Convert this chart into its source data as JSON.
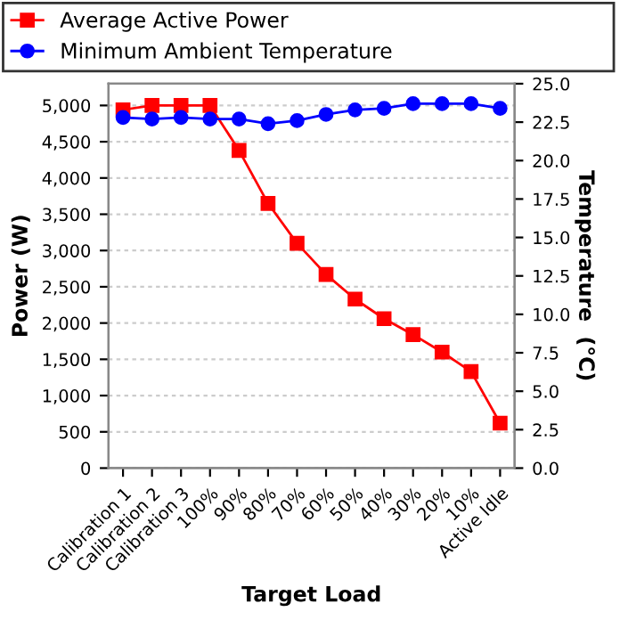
{
  "chart_data": {
    "type": "line",
    "xlabel": "Target Load",
    "ylabel": "Power (W)",
    "y2label": "Temperature  (°C)",
    "categories": [
      "Calibration 1",
      "Calibration 2",
      "Calibration 3",
      "100%",
      "90%",
      "80%",
      "70%",
      "60%",
      "50%",
      "40%",
      "30%",
      "20%",
      "10%",
      "Active Idle"
    ],
    "series": [
      {
        "name": "Average Active Power",
        "color": "#ff0000",
        "marker": "square",
        "values": [
          4940,
          5000,
          5000,
          5000,
          4380,
          3650,
          3100,
          2670,
          2330,
          2060,
          1840,
          1600,
          1330,
          620
        ]
      },
      {
        "name": "Minimum Ambient Temperature",
        "color": "#0000ff",
        "marker": "circle",
        "axis": "y2",
        "values": [
          22.8,
          22.7,
          22.8,
          22.7,
          22.7,
          22.4,
          22.6,
          23.0,
          23.3,
          23.4,
          23.7,
          23.7,
          23.7,
          23.4
        ]
      }
    ],
    "ylim": [
      0,
      5300
    ],
    "yticks": [
      {
        "value": 0,
        "label": "0"
      },
      {
        "value": 500,
        "label": "500"
      },
      {
        "value": 1000,
        "label": "1,000"
      },
      {
        "value": 1500,
        "label": "1,500"
      },
      {
        "value": 2000,
        "label": "2,000"
      },
      {
        "value": 2500,
        "label": "2,500"
      },
      {
        "value": 3000,
        "label": "3,000"
      },
      {
        "value": 3500,
        "label": "3,500"
      },
      {
        "value": 4000,
        "label": "4,000"
      },
      {
        "value": 4500,
        "label": "4,500"
      },
      {
        "value": 5000,
        "label": "5,000"
      }
    ],
    "y2lim": [
      0,
      25
    ],
    "y2ticks": [
      {
        "value": 0,
        "label": "0.0"
      },
      {
        "value": 2.5,
        "label": "2.5"
      },
      {
        "value": 5,
        "label": "5.0"
      },
      {
        "value": 7.5,
        "label": "7.5"
      },
      {
        "value": 10,
        "label": "10.0"
      },
      {
        "value": 12.5,
        "label": "12.5"
      },
      {
        "value": 15,
        "label": "15.0"
      },
      {
        "value": 17.5,
        "label": "17.5"
      },
      {
        "value": 20,
        "label": "20.0"
      },
      {
        "value": 22.5,
        "label": "22.5"
      },
      {
        "value": 25,
        "label": "25.0"
      }
    ],
    "grid": "y",
    "legend": "top",
    "line_style": "solid"
  }
}
